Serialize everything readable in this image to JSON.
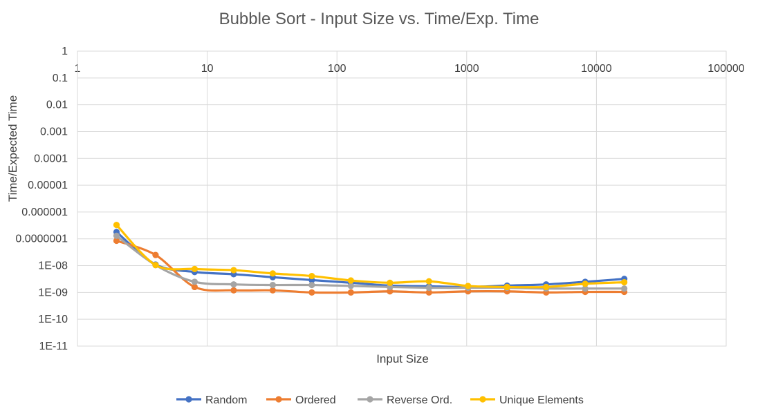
{
  "chart_data": {
    "type": "line",
    "title": "Bubble Sort - Input Size vs. Time/Exp. Time",
    "xlabel": "Input Size",
    "ylabel": "Time/Expected Time",
    "x_scale": "log",
    "y_scale": "log",
    "xlim": [
      1,
      100000
    ],
    "ylim": [
      1e-11,
      1
    ],
    "x_ticks": [
      "1",
      "10",
      "100",
      "1000",
      "10000",
      "100000"
    ],
    "y_ticks": [
      "1",
      "0.1",
      "0.01",
      "0.001",
      "0.0001",
      "0.00001",
      "0.000001",
      "0.0000001",
      "1E-08",
      "1E-09",
      "1E-10",
      "1E-11"
    ],
    "grid": true,
    "legend_position": "bottom",
    "x": [
      2,
      4,
      8,
      16,
      32,
      64,
      128,
      256,
      512,
      1024,
      2048,
      4096,
      8192,
      16384
    ],
    "series": [
      {
        "name": "Random",
        "color": "#4472c4",
        "values": [
          1.8e-07,
          1.1e-08,
          5.8e-09,
          4.8e-09,
          3.7e-09,
          2.9e-09,
          2.3e-09,
          1.8e-09,
          1.7e-09,
          1.6e-09,
          1.8e-09,
          2e-09,
          2.5e-09,
          3.2e-09
        ]
      },
      {
        "name": "Ordered",
        "color": "#ed7d31",
        "values": [
          8.5e-08,
          2.5e-08,
          1.6e-09,
          1.2e-09,
          1.2e-09,
          1e-09,
          1e-09,
          1.1e-09,
          1e-09,
          1.1e-09,
          1.1e-09,
          1e-09,
          1.05e-09,
          1.05e-09
        ]
      },
      {
        "name": "Reverse Ord.",
        "color": "#a5a5a5",
        "values": [
          1.3e-07,
          1.05e-08,
          2.5e-09,
          2e-09,
          1.9e-09,
          1.9e-09,
          1.75e-09,
          1.6e-09,
          1.5e-09,
          1.5e-09,
          1.5e-09,
          1.4e-09,
          1.4e-09,
          1.4e-09
        ]
      },
      {
        "name": "Unique Elements",
        "color": "#ffc000",
        "values": [
          3.3e-07,
          1.05e-08,
          7.5e-09,
          6.8e-09,
          5.1e-09,
          4.1e-09,
          2.8e-09,
          2.3e-09,
          2.6e-09,
          1.75e-09,
          1.6e-09,
          1.6e-09,
          2.1e-09,
          2.4e-09
        ]
      }
    ]
  }
}
